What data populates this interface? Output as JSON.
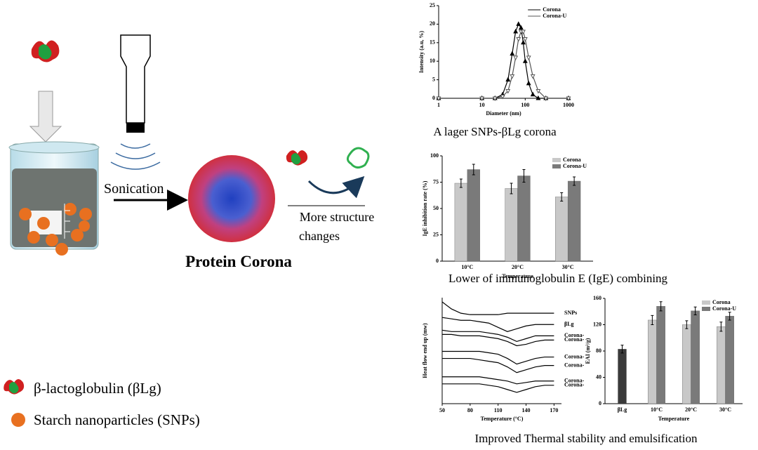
{
  "diagram": {
    "sonication": "Sonication",
    "corona": "Protein Corona",
    "changes": [
      "More structure",
      "changes"
    ],
    "legend_protein": "β-lactoglobulin (βLg)",
    "legend_snps": "Starch nanoparticles (SNPs)",
    "captions": [
      "A lager SNPs-βLg corona",
      "Lower of immunoglobulin E (IgE) combining",
      "Improved Thermal stability and emulsification"
    ]
  },
  "chart_data": [
    {
      "type": "line",
      "xlabel": "Diameter (nm)",
      "ylabel": "Intensity (a.u, %)",
      "xscale": "log",
      "x": [
        1,
        10,
        20,
        30,
        40,
        50,
        60,
        70,
        80,
        90,
        100,
        120,
        150,
        200,
        300,
        1000
      ],
      "xlim": [
        1,
        1000
      ],
      "xticks": [
        1,
        10,
        100,
        1000
      ],
      "ylim": [
        0,
        25
      ],
      "yticks": [
        0,
        5,
        10,
        15,
        20,
        25
      ],
      "legend": "upper right",
      "series": [
        {
          "name": "Corona",
          "color": "#000000",
          "marker": "triangle-up",
          "values": [
            0,
            0,
            0,
            1,
            5,
            12,
            18,
            20,
            19,
            15,
            10,
            4,
            1,
            0,
            0,
            0
          ]
        },
        {
          "name": "Corona-U",
          "color": "#555555",
          "marker": "triangle-down",
          "values": [
            0,
            0,
            0,
            0.5,
            2,
            6,
            11,
            16,
            18,
            18,
            16,
            11,
            6,
            2,
            0,
            0
          ]
        }
      ]
    },
    {
      "type": "bar",
      "xlabel": "Temperatrue",
      "ylabel": "IgE inhibition rate (%)",
      "categories": [
        "10°C",
        "20°C",
        "30°C"
      ],
      "ylim": [
        0,
        100
      ],
      "yticks": [
        0,
        25,
        50,
        75,
        100
      ],
      "legend": "upper right",
      "series": [
        {
          "name": "Corona",
          "color": "#c8c8c8",
          "values": [
            74,
            69,
            61
          ],
          "errors": [
            4,
            5,
            4
          ]
        },
        {
          "name": "Corona-U",
          "color": "#7a7a7a",
          "values": [
            87,
            81,
            76
          ],
          "errors": [
            5,
            6,
            4
          ]
        }
      ]
    },
    {
      "type": "line",
      "xlabel": "Temperature (°C)",
      "ylabel": "Heat flow end up (mw)",
      "x": [
        50,
        60,
        70,
        80,
        90,
        100,
        110,
        120,
        130,
        140,
        150,
        160,
        170
      ],
      "xlim": [
        50,
        178
      ],
      "xticks": [
        50,
        80,
        110,
        140,
        170
      ],
      "ylim": [
        25,
        100
      ],
      "legend": "end",
      "series": [
        {
          "name": "SNPs",
          "color": "#000000",
          "values": [
            97,
            92,
            89,
            88,
            88,
            88,
            88,
            89,
            89,
            89,
            89,
            89,
            89
          ]
        },
        {
          "name": "βLg",
          "color": "#000000",
          "values": [
            86,
            85,
            84,
            84,
            83,
            82,
            79,
            76,
            78,
            80,
            81,
            81,
            81
          ]
        },
        {
          "name": "Corona-",
          "color": "#000000",
          "values": [
            77,
            76,
            76,
            76,
            76,
            75,
            74,
            72,
            69,
            71,
            73,
            73,
            73
          ]
        },
        {
          "name": "Corona-",
          "color": "#000000",
          "values": [
            74,
            74,
            73,
            73,
            73,
            72,
            71,
            69,
            66,
            67,
            69,
            70,
            70
          ]
        },
        {
          "name": "Corona-",
          "color": "#000000",
          "values": [
            62,
            62,
            62,
            62,
            62,
            61,
            60,
            57,
            53,
            55,
            57,
            58,
            58
          ]
        },
        {
          "name": "Corona-",
          "color": "#000000",
          "values": [
            57,
            57,
            57,
            57,
            56,
            55,
            54,
            51,
            47,
            49,
            51,
            52,
            52
          ]
        },
        {
          "name": "Corona-",
          "color": "#000000",
          "values": [
            44,
            44,
            44,
            44,
            44,
            43,
            42,
            41,
            39,
            40,
            41,
            41,
            41
          ]
        },
        {
          "name": "Corona-",
          "color": "#000000",
          "values": [
            39,
            39,
            39,
            39,
            39,
            38,
            37,
            35,
            33,
            35,
            37,
            38,
            38
          ]
        }
      ]
    },
    {
      "type": "bar",
      "xlabel": "Temperature",
      "ylabel": "EAI (m²/g)",
      "categories": [
        "βLg",
        "10°C",
        "20°C",
        "30°C"
      ],
      "ylim": [
        0,
        160
      ],
      "yticks": [
        0,
        40,
        80,
        120,
        160
      ],
      "legend": "upper right",
      "base_values": [
        83,
        null,
        null,
        null
      ],
      "base_errors": [
        6,
        null,
        null,
        null
      ],
      "base_color": "#3a3a3a",
      "series": [
        {
          "name": "Corona",
          "color": "#c8c8c8",
          "values": [
            null,
            127,
            120,
            117
          ],
          "errors": [
            null,
            7,
            6,
            7
          ]
        },
        {
          "name": "Corona-U",
          "color": "#7a7a7a",
          "values": [
            null,
            148,
            141,
            133
          ],
          "errors": [
            null,
            7,
            6,
            6
          ]
        }
      ]
    }
  ]
}
